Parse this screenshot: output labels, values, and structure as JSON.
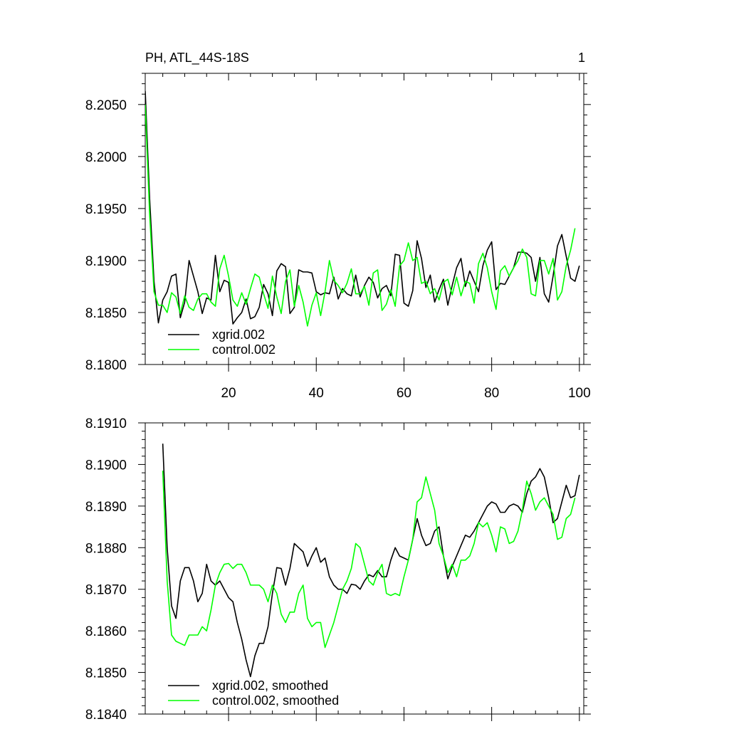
{
  "header": {
    "title": "PH, ATL_44S-18S",
    "panel_number": "1"
  },
  "chart_data": [
    {
      "type": "line",
      "title": "PH, ATL_44S-18S",
      "xlabel": "",
      "ylabel": "",
      "xlim": [
        1,
        101
      ],
      "ylim": [
        8.18,
        8.208
      ],
      "x_ticks": [
        20,
        40,
        60,
        80,
        100
      ],
      "x_tick_labels": [
        "20",
        "40",
        "60",
        "80",
        "100"
      ],
      "y_ticks": [
        8.18,
        8.185,
        8.19,
        8.195,
        8.2,
        8.205
      ],
      "y_tick_labels": [
        "8.1800",
        "8.1850",
        "8.1900",
        "8.1950",
        "8.2000",
        "8.2050"
      ],
      "legend_position": "bottom-left",
      "grid": false,
      "series": [
        {
          "name": "xgrid.002",
          "color": "#000000",
          "x_start": 1,
          "values": [
            8.2063,
            8.196,
            8.188,
            8.184,
            8.1862,
            8.187,
            8.1885,
            8.1887,
            8.1845,
            8.186,
            8.19,
            8.1885,
            8.187,
            8.1849,
            8.1864,
            8.1862,
            8.1905,
            8.187,
            8.1881,
            8.1879,
            8.1839,
            8.1845,
            8.185,
            8.1863,
            8.1844,
            8.1846,
            8.1855,
            8.1877,
            8.1868,
            8.1847,
            8.189,
            8.1897,
            8.1894,
            8.1849,
            8.1855,
            8.1891,
            8.1889,
            8.1889,
            8.1888,
            8.187,
            8.1867,
            8.1869,
            8.1868,
            8.1884,
            8.1863,
            8.1873,
            8.1868,
            8.1866,
            8.1886,
            8.1865,
            8.1876,
            8.1884,
            8.1879,
            8.1864,
            8.1873,
            8.1876,
            8.1866,
            8.1906,
            8.1905,
            8.1859,
            8.1856,
            8.1871,
            8.1919,
            8.1902,
            8.1874,
            8.1886,
            8.186,
            8.1872,
            8.1882,
            8.1857,
            8.1876,
            8.1893,
            8.1902,
            8.1875,
            8.189,
            8.188,
            8.187,
            8.1895,
            8.191,
            8.1918,
            8.1872,
            8.1878,
            8.1877,
            8.1885,
            8.1893,
            8.1908,
            8.1908,
            8.1907,
            8.1903,
            8.188,
            8.1903,
            8.1868,
            8.186,
            8.1885,
            8.1914,
            8.1925,
            8.1904,
            8.1883,
            8.188,
            8.1895
          ]
        },
        {
          "name": "control.002",
          "color": "#00ff00",
          "x_start": 1,
          "values": [
            8.205,
            8.1945,
            8.187,
            8.1857,
            8.1857,
            8.185,
            8.1869,
            8.1865,
            8.1849,
            8.1866,
            8.1855,
            8.1852,
            8.1863,
            8.1868,
            8.1868,
            8.186,
            8.1856,
            8.1892,
            8.1905,
            8.1885,
            8.1862,
            8.1856,
            8.1869,
            8.1858,
            8.1873,
            8.1887,
            8.1884,
            8.1868,
            8.1854,
            8.1885,
            8.1865,
            8.1849,
            8.188,
            8.1891,
            8.1856,
            8.1876,
            8.186,
            8.1837,
            8.1857,
            8.1869,
            8.1847,
            8.187,
            8.19,
            8.1881,
            8.1876,
            8.1869,
            8.1878,
            8.1892,
            8.1868,
            8.1868,
            8.1875,
            8.1857,
            8.1888,
            8.1891,
            8.1852,
            8.1858,
            8.1872,
            8.1856,
            8.1895,
            8.19,
            8.1917,
            8.19,
            8.1903,
            8.1878,
            8.188,
            8.1868,
            8.1873,
            8.1862,
            8.1879,
            8.1882,
            8.1867,
            8.1884,
            8.1866,
            8.188,
            8.1878,
            8.1859,
            8.1897,
            8.1907,
            8.1893,
            8.187,
            8.1853,
            8.189,
            8.1895,
            8.1885,
            8.1893,
            8.19,
            8.1911,
            8.1903,
            8.1868,
            8.1866,
            8.19,
            8.19,
            8.1887,
            8.1902,
            8.1862,
            8.187,
            8.1895,
            8.191,
            8.1931
          ]
        }
      ]
    },
    {
      "type": "line",
      "title": "",
      "xlabel": "",
      "ylabel": "",
      "xlim": [
        1,
        101
      ],
      "ylim": [
        8.184,
        8.191
      ],
      "x_ticks": [
        20,
        40,
        60,
        80,
        100
      ],
      "x_tick_labels": [],
      "y_ticks": [
        8.184,
        8.185,
        8.186,
        8.187,
        8.188,
        8.189,
        8.19,
        8.191
      ],
      "y_tick_labels": [
        "8.1840",
        "8.1850",
        "8.1860",
        "8.1870",
        "8.1880",
        "8.1890",
        "8.1900",
        "8.1910"
      ],
      "legend_position": "bottom-left",
      "grid": false,
      "series": [
        {
          "name": "xgrid.002, smoothed",
          "color": "#000000",
          "x_start": 5,
          "values": [
            8.1905,
            8.188,
            8.1866,
            8.1863,
            8.1872,
            8.18752,
            8.18752,
            8.1872,
            8.1867,
            8.1869,
            8.1876,
            8.1872,
            8.1871,
            8.1872,
            8.187,
            8.1868,
            8.1867,
            8.1862,
            8.1858,
            8.1853,
            8.1849,
            8.1854,
            8.1857,
            8.1857,
            8.1861,
            8.1869,
            8.18752,
            8.1875,
            8.1871,
            8.1875,
            8.1881,
            8.188,
            8.1879,
            8.18755,
            8.1878,
            8.188,
            8.18765,
            8.18775,
            8.1873,
            8.1871,
            8.187,
            8.187,
            8.1869,
            8.18712,
            8.1871,
            8.187,
            8.1872,
            8.18735,
            8.1873,
            8.18745,
            8.1873,
            8.1873,
            8.1877,
            8.188,
            8.1878,
            8.18775,
            8.1877,
            8.1882,
            8.1887,
            8.1883,
            8.18805,
            8.1881,
            8.1884,
            8.1885,
            8.1878,
            8.18725,
            8.18755,
            8.1878,
            8.18805,
            8.1883,
            8.18825,
            8.1884,
            8.1886,
            8.1888,
            8.189,
            8.1891,
            8.18905,
            8.18885,
            8.18885,
            8.189,
            8.18905,
            8.189,
            8.18885,
            8.1893,
            8.1896,
            8.1897,
            8.1899,
            8.1897,
            8.1892,
            8.1886,
            8.1887,
            8.1891,
            8.1895,
            8.1892,
            8.18925,
            8.18975
          ]
        },
        {
          "name": "control.002, smoothed",
          "color": "#00ff00",
          "x_start": 5,
          "values": [
            8.18985,
            8.1872,
            8.1859,
            8.18575,
            8.1857,
            8.18565,
            8.1859,
            8.1859,
            8.1859,
            8.1861,
            8.186,
            8.1865,
            8.1871,
            8.1874,
            8.1876,
            8.18762,
            8.1875,
            8.1876,
            8.1876,
            8.1874,
            8.1871,
            8.1871,
            8.1871,
            8.187,
            8.1867,
            8.1871,
            8.1869,
            8.1864,
            8.1862,
            8.18645,
            8.18645,
            8.1869,
            8.1871,
            8.1863,
            8.1861,
            8.1862,
            8.1862,
            8.1856,
            8.1859,
            8.1862,
            8.1866,
            8.187,
            8.1872,
            8.1875,
            8.1881,
            8.188,
            8.1876,
            8.1872,
            8.1871,
            8.1874,
            8.1876,
            8.1869,
            8.18685,
            8.1869,
            8.18685,
            8.1873,
            8.1877,
            8.1882,
            8.1891,
            8.1892,
            8.1897,
            8.1893,
            8.1889,
            8.1881,
            8.1878,
            8.1874,
            8.1876,
            8.1873,
            8.1877,
            8.1877,
            8.1878,
            8.1881,
            8.1886,
            8.1885,
            8.1886,
            8.1883,
            8.1879,
            8.1885,
            8.18845,
            8.1881,
            8.18815,
            8.1884,
            8.1889,
            8.1896,
            8.1893,
            8.1889,
            8.1891,
            8.1892,
            8.189,
            8.1888,
            8.1882,
            8.18825,
            8.1887,
            8.1888,
            8.1892
          ]
        }
      ]
    }
  ]
}
